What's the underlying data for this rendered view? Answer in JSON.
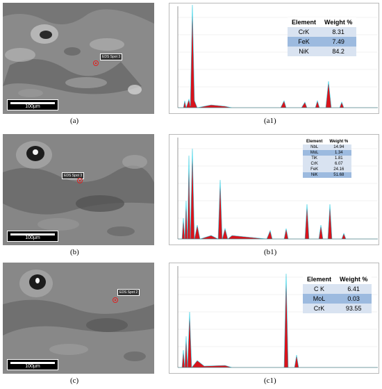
{
  "panels": [
    {
      "sem_caption": "(a)",
      "spec_caption": "(a1)",
      "scale_bar": "100µm",
      "spot_label": "EDS Spot 3",
      "table": {
        "headers": [
          "Element",
          "Weight %"
        ],
        "rows": [
          [
            "CrK",
            "8.31"
          ],
          [
            "FeK",
            "7.49"
          ],
          [
            "NiK",
            "84.2"
          ]
        ]
      }
    },
    {
      "sem_caption": "(b)",
      "spec_caption": "(b1)",
      "scale_bar": "100µm",
      "spot_label": "EDS Spot 3",
      "table": {
        "headers": [
          "Element",
          "Weight %"
        ],
        "rows": [
          [
            "NbL",
            "14.94"
          ],
          [
            "MoL",
            "1.34"
          ],
          [
            "TiK",
            "1.81"
          ],
          [
            "CrK",
            "6.07"
          ],
          [
            "FeK",
            "24.16"
          ],
          [
            "NiK",
            "51.68"
          ]
        ]
      }
    },
    {
      "sem_caption": "(c)",
      "spec_caption": "(c1)",
      "scale_bar": "100µm",
      "spot_label": "EDS Spot 2",
      "table": {
        "headers": [
          "Element",
          "Weight %"
        ],
        "rows": [
          [
            "C K",
            "6.41"
          ],
          [
            "MoL",
            "0.03"
          ],
          [
            "CrK",
            "93.55"
          ]
        ]
      }
    }
  ]
}
